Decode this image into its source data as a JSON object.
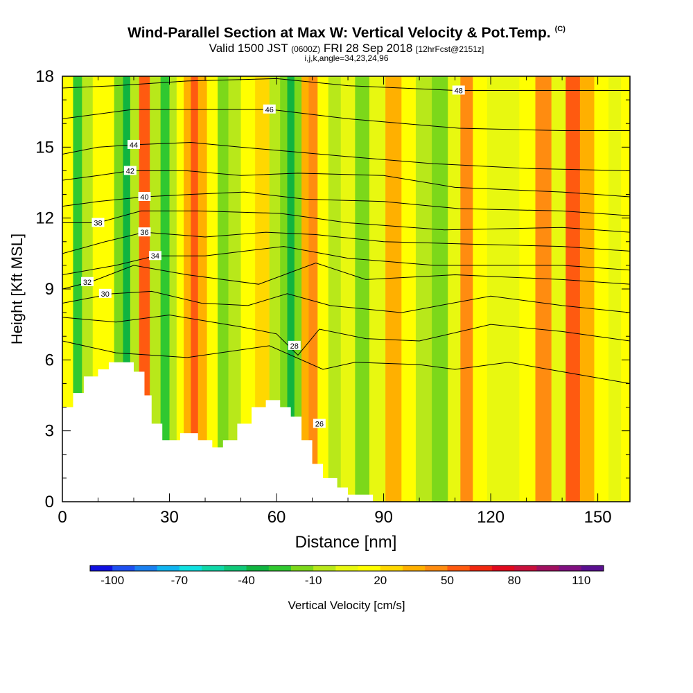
{
  "header": {
    "title": "Wind-Parallel Section at Max W: Vertical Velocity & Pot.Temp.",
    "copyright": "(C)",
    "valid_prefix": "Valid 1500 JST",
    "valid_utc": "(0600Z)",
    "valid_date": "FRI 28 Sep 2018",
    "forecast": "[12hrFcst@2151z]",
    "params": "i,j,k,angle=34,23,24,96"
  },
  "chart_data": {
    "type": "heatmap",
    "title": "Wind-Parallel Section at Max W: Vertical Velocity & Pot.Temp.",
    "xlabel": "Distance [nm]",
    "ylabel": "Height [Kft MSL]",
    "xlim": [
      0,
      159
    ],
    "ylim": [
      0,
      18
    ],
    "x_ticks": [
      "0",
      "30",
      "60",
      "90",
      "120",
      "150"
    ],
    "y_ticks": [
      "0",
      "3",
      "6",
      "9",
      "12",
      "15",
      "18"
    ],
    "w_columns": [
      {
        "x": 2,
        "w": 10
      },
      {
        "x": 4,
        "w": -30
      },
      {
        "x": 7,
        "w": -10
      },
      {
        "x": 10,
        "w": 5
      },
      {
        "x": 13,
        "w": 5
      },
      {
        "x": 16,
        "w": -20
      },
      {
        "x": 18,
        "w": -40
      },
      {
        "x": 20,
        "w": -15
      },
      {
        "x": 23,
        "w": 50
      },
      {
        "x": 26,
        "w": -10
      },
      {
        "x": 29,
        "w": -30
      },
      {
        "x": 31,
        "w": -10
      },
      {
        "x": 33,
        "w": 5
      },
      {
        "x": 35,
        "w": 30
      },
      {
        "x": 37,
        "w": 50
      },
      {
        "x": 39,
        "w": 30
      },
      {
        "x": 42,
        "w": 5
      },
      {
        "x": 45,
        "w": -20
      },
      {
        "x": 48,
        "w": -10
      },
      {
        "x": 52,
        "w": 10
      },
      {
        "x": 56,
        "w": 15
      },
      {
        "x": 60,
        "w": -10
      },
      {
        "x": 62,
        "w": -25
      },
      {
        "x": 64,
        "w": -40
      },
      {
        "x": 66,
        "w": -20
      },
      {
        "x": 68,
        "w": 30
      },
      {
        "x": 70,
        "w": 40
      },
      {
        "x": 73,
        "w": 10
      },
      {
        "x": 76,
        "w": -10
      },
      {
        "x": 80,
        "w": 0
      },
      {
        "x": 84,
        "w": -25
      },
      {
        "x": 88,
        "w": 0
      },
      {
        "x": 93,
        "w": 30
      },
      {
        "x": 97,
        "w": 10
      },
      {
        "x": 101,
        "w": -10
      },
      {
        "x": 106,
        "w": -20
      },
      {
        "x": 110,
        "w": 0
      },
      {
        "x": 113,
        "w": 40
      },
      {
        "x": 117,
        "w": 10
      },
      {
        "x": 121,
        "w": -5
      },
      {
        "x": 126,
        "w": 0
      },
      {
        "x": 130,
        "w": 10
      },
      {
        "x": 135,
        "w": 40
      },
      {
        "x": 139,
        "w": 0
      },
      {
        "x": 143,
        "w": 50
      },
      {
        "x": 147,
        "w": 30
      },
      {
        "x": 151,
        "w": 10
      },
      {
        "x": 155,
        "w": 0
      },
      {
        "x": 158,
        "w": 5
      }
    ],
    "terrain": [
      {
        "x": 0,
        "h": 4.0
      },
      {
        "x": 3,
        "h": 4.6
      },
      {
        "x": 6,
        "h": 5.3
      },
      {
        "x": 10,
        "h": 5.6
      },
      {
        "x": 13,
        "h": 5.9
      },
      {
        "x": 18,
        "h": 5.9
      },
      {
        "x": 20,
        "h": 5.5
      },
      {
        "x": 23,
        "h": 4.5
      },
      {
        "x": 25,
        "h": 3.3
      },
      {
        "x": 28,
        "h": 2.6
      },
      {
        "x": 33,
        "h": 2.9
      },
      {
        "x": 38,
        "h": 2.6
      },
      {
        "x": 42,
        "h": 2.3
      },
      {
        "x": 45,
        "h": 2.6
      },
      {
        "x": 49,
        "h": 3.3
      },
      {
        "x": 53,
        "h": 4.0
      },
      {
        "x": 57,
        "h": 4.3
      },
      {
        "x": 61,
        "h": 4.0
      },
      {
        "x": 64,
        "h": 3.6
      },
      {
        "x": 67,
        "h": 2.6
      },
      {
        "x": 70,
        "h": 1.6
      },
      {
        "x": 73,
        "h": 1.0
      },
      {
        "x": 77,
        "h": 0.6
      },
      {
        "x": 80,
        "h": 0.3
      },
      {
        "x": 84,
        "h": 0.3
      }
    ],
    "theta_contours": [
      {
        "value": 26,
        "label": "26",
        "points": [
          [
            0,
            6.8
          ],
          [
            15,
            6.3
          ],
          [
            35,
            6.1
          ],
          [
            58,
            6.6
          ],
          [
            73,
            5.6
          ],
          [
            82,
            5.9
          ],
          [
            100,
            5.8
          ],
          [
            110,
            5.6
          ],
          [
            125,
            5.9
          ],
          [
            140,
            5.5
          ],
          [
            159,
            5.0
          ]
        ],
        "label_pos": [
          72,
          3.3
        ]
      },
      {
        "value": 28,
        "label": "28",
        "points": [
          [
            0,
            7.8
          ],
          [
            15,
            7.6
          ],
          [
            30,
            7.9
          ],
          [
            50,
            7.4
          ],
          [
            60,
            7.1
          ],
          [
            66,
            6.2
          ],
          [
            72,
            7.3
          ],
          [
            85,
            6.9
          ],
          [
            100,
            6.8
          ],
          [
            120,
            7.5
          ],
          [
            140,
            7.2
          ],
          [
            159,
            6.8
          ]
        ],
        "label_pos": [
          65,
          6.6
        ]
      },
      {
        "value": 30,
        "label": "30",
        "points": [
          [
            0,
            8.4
          ],
          [
            14,
            8.8
          ],
          [
            25,
            8.9
          ],
          [
            39,
            8.4
          ],
          [
            52,
            8.3
          ],
          [
            63,
            8.8
          ],
          [
            75,
            8.3
          ],
          [
            95,
            8.0
          ],
          [
            120,
            8.7
          ],
          [
            140,
            8.3
          ],
          [
            159,
            8.0
          ]
        ],
        "label_pos": [
          12,
          8.8
        ]
      },
      {
        "value": 32,
        "label": "32",
        "points": [
          [
            0,
            9.0
          ],
          [
            8,
            9.3
          ],
          [
            20,
            10.0
          ],
          [
            35,
            9.6
          ],
          [
            55,
            9.2
          ],
          [
            71,
            10.1
          ],
          [
            85,
            9.4
          ],
          [
            110,
            9.6
          ],
          [
            140,
            9.4
          ],
          [
            159,
            9.2
          ]
        ],
        "label_pos": [
          7,
          9.3
        ]
      },
      {
        "value": 34,
        "label": "34",
        "points": [
          [
            0,
            9.6
          ],
          [
            15,
            10.0
          ],
          [
            26,
            10.4
          ],
          [
            40,
            10.4
          ],
          [
            62,
            10.8
          ],
          [
            80,
            10.3
          ],
          [
            104,
            10.0
          ],
          [
            140,
            10.0
          ],
          [
            159,
            9.8
          ]
        ],
        "label_pos": [
          26,
          10.4
        ]
      },
      {
        "value": 36,
        "label": "36",
        "points": [
          [
            0,
            10.5
          ],
          [
            12,
            11.0
          ],
          [
            23,
            11.4
          ],
          [
            40,
            11.2
          ],
          [
            57,
            11.4
          ],
          [
            71,
            11.3
          ],
          [
            90,
            11.0
          ],
          [
            114,
            10.9
          ],
          [
            140,
            10.8
          ],
          [
            159,
            10.6
          ]
        ],
        "label_pos": [
          23,
          11.4
        ]
      },
      {
        "value": 38,
        "label": "38",
        "points": [
          [
            0,
            11.8
          ],
          [
            10,
            11.8
          ],
          [
            22,
            12.3
          ],
          [
            38,
            12.3
          ],
          [
            61,
            12.2
          ],
          [
            80,
            11.8
          ],
          [
            107,
            11.5
          ],
          [
            140,
            11.6
          ],
          [
            159,
            11.4
          ]
        ],
        "label_pos": [
          10,
          11.8
        ]
      },
      {
        "value": 40,
        "label": "40",
        "points": [
          [
            0,
            12.5
          ],
          [
            10,
            12.7
          ],
          [
            23,
            12.9
          ],
          [
            36,
            13.0
          ],
          [
            51,
            13.1
          ],
          [
            68,
            12.8
          ],
          [
            90,
            12.7
          ],
          [
            111,
            12.4
          ],
          [
            140,
            12.3
          ],
          [
            159,
            12.1
          ]
        ],
        "label_pos": [
          23,
          12.9
        ]
      },
      {
        "value": 42,
        "label": "42",
        "points": [
          [
            0,
            13.6
          ],
          [
            10,
            13.8
          ],
          [
            19,
            14.0
          ],
          [
            35,
            14.0
          ],
          [
            50,
            13.8
          ],
          [
            66,
            13.9
          ],
          [
            90,
            13.8
          ],
          [
            110,
            13.3
          ],
          [
            140,
            13.1
          ],
          [
            159,
            12.9
          ]
        ],
        "label_pos": [
          19,
          14.0
        ]
      },
      {
        "value": 44,
        "label": "44",
        "points": [
          [
            0,
            14.7
          ],
          [
            10,
            15.0
          ],
          [
            20,
            15.1
          ],
          [
            36,
            15.2
          ],
          [
            50,
            15.0
          ],
          [
            65,
            14.8
          ],
          [
            80,
            14.6
          ],
          [
            104,
            14.3
          ],
          [
            130,
            14.1
          ],
          [
            159,
            14.0
          ]
        ],
        "label_pos": [
          20,
          15.1
        ]
      },
      {
        "value": 46,
        "label": "46",
        "points": [
          [
            0,
            16.2
          ],
          [
            10,
            16.4
          ],
          [
            20,
            16.6
          ],
          [
            35,
            16.6
          ],
          [
            58,
            16.6
          ],
          [
            80,
            16.2
          ],
          [
            111,
            15.8
          ],
          [
            140,
            15.7
          ],
          [
            159,
            15.7
          ]
        ],
        "label_pos": [
          58,
          16.6
        ]
      },
      {
        "value": 48,
        "label": "48",
        "points": [
          [
            0,
            17.5
          ],
          [
            15,
            17.6
          ],
          [
            35,
            17.8
          ],
          [
            60,
            17.9
          ],
          [
            80,
            17.6
          ],
          [
            110,
            17.4
          ],
          [
            140,
            17.4
          ],
          [
            159,
            17.4
          ]
        ],
        "label_pos": [
          111,
          17.4
        ]
      }
    ],
    "colorbar": {
      "title": "Vertical Velocity [cm/s]",
      "tick_labels": [
        "-100",
        "-70",
        "-40",
        "-10",
        "20",
        "50",
        "80",
        "110"
      ],
      "colors": [
        "#1010e0",
        "#1e50f0",
        "#1a80f0",
        "#10b4f0",
        "#10e0e0",
        "#10d8a8",
        "#10c878",
        "#10b440",
        "#30c830",
        "#7cd81a",
        "#b8e81a",
        "#e8f810",
        "#ffff00",
        "#ffd800",
        "#ffb000",
        "#ff8c10",
        "#ff5a10",
        "#f02810",
        "#e00a1e",
        "#c8103c",
        "#a01060",
        "#801080",
        "#5a1090"
      ]
    }
  }
}
